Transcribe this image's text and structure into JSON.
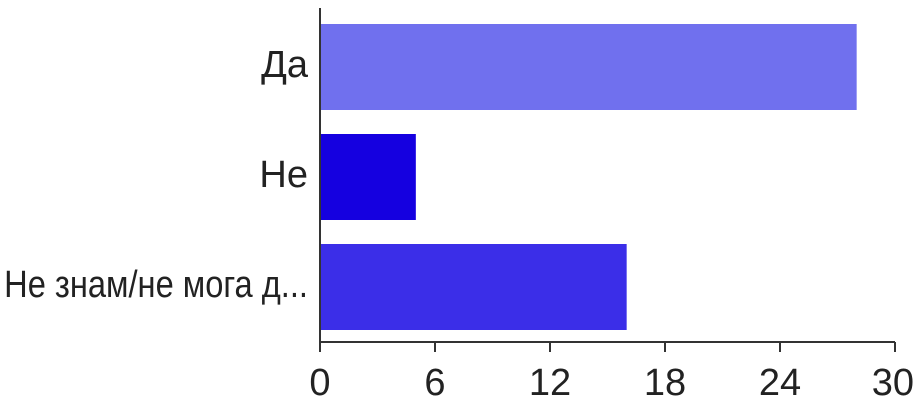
{
  "chart_data": {
    "type": "bar",
    "orientation": "horizontal",
    "categories": [
      "Да",
      "Не",
      "Не знам/не мога д..."
    ],
    "values": [
      28,
      5,
      16
    ],
    "colors": [
      "#7070ee",
      "#1500e0",
      "#3b2ee8"
    ],
    "xlim": [
      0,
      30
    ],
    "xticks": [
      0,
      6,
      12,
      18,
      24,
      30
    ],
    "xtick_labels": [
      "0",
      "6",
      "12",
      "18",
      "24",
      "30"
    ],
    "grid": false,
    "title": "",
    "xlabel": "",
    "ylabel": ""
  }
}
